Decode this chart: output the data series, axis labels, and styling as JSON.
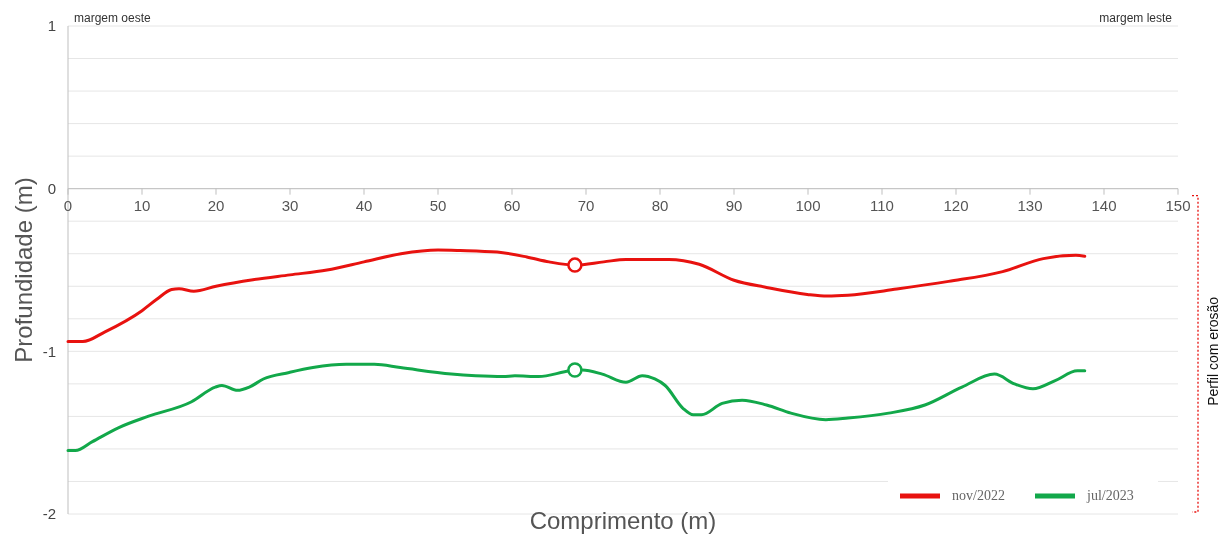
{
  "chart_data": {
    "type": "line",
    "xlabel": "Comprimento (m)",
    "ylabel": "Profundidade (m)",
    "xlim": [
      0,
      150
    ],
    "xticks": [
      0,
      10,
      20,
      30,
      40,
      50,
      60,
      70,
      80,
      90,
      100,
      110,
      120,
      130,
      140,
      150
    ],
    "ylim": [
      -2,
      1
    ],
    "yticks": [
      -2,
      {
        "value": -1.8,
        "label": null
      },
      {
        "value": -1.6,
        "label": null
      },
      {
        "value": -1.4,
        "label": null
      },
      {
        "value": -1.2,
        "label": null
      },
      -1,
      {
        "value": -0.8,
        "label": null
      },
      {
        "value": -0.6,
        "label": null
      },
      {
        "value": -0.4,
        "label": null
      },
      {
        "value": -0.2,
        "label": null
      },
      0,
      {
        "value": 0.2,
        "label": null
      },
      {
        "value": 0.4,
        "label": null
      },
      {
        "value": 0.6,
        "label": null
      },
      {
        "value": 0.8,
        "label": null
      },
      1
    ],
    "grid": "y",
    "legend": "bottom right",
    "line_style": "solid",
    "marker": "none",
    "annotations": [
      "margem oeste",
      "margem leste",
      "Perfil com erosão"
    ],
    "series": [
      {
        "name": "nov/2022",
        "color": "#e8120f",
        "x": [
          0,
          2,
          5,
          10,
          12,
          14,
          15,
          17,
          20,
          25,
          30,
          35,
          40,
          45,
          50,
          53,
          58,
          62,
          65,
          68.5,
          72.4,
          75.4,
          81.2,
          85.3,
          90,
          94.4,
          99.9,
          102.6,
          105.4,
          112,
          119,
          126.3,
          131.8,
          136.2,
          137.4
        ],
        "values": [
          -0.94,
          -0.94,
          -0.88,
          -0.75,
          -0.68,
          -0.62,
          -0.615,
          -0.63,
          -0.6,
          -0.56,
          -0.53,
          -0.5,
          -0.45,
          -0.4,
          -0.377,
          -0.38,
          -0.39,
          -0.42,
          -0.45,
          -0.47,
          -0.45,
          -0.435,
          -0.435,
          -0.465,
          -0.563,
          -0.607,
          -0.65,
          -0.66,
          -0.655,
          -0.617,
          -0.57,
          -0.51,
          -0.43,
          -0.41,
          -0.415
        ]
      },
      {
        "name": "jul/2023",
        "color": "#12a84a",
        "x": [
          0,
          1,
          3.3,
          6.8,
          10.8,
          16.7,
          19.9,
          20.8,
          22.9,
          24.5,
          26.4,
          29.9,
          33.1,
          37.6,
          41.4,
          44.9,
          51.8,
          55.1,
          58.8,
          60.4,
          63.6,
          67.9,
          69.5,
          72.2,
          75.4,
          77.6,
          79.3,
          80.7,
          83.1,
          84.5,
          85.6,
          88.4,
          91.1,
          94.4,
          97.7,
          102.4,
          105.4,
          110.9,
          115.8,
          120.8,
          125.2,
          127.9,
          130.4,
          133.4,
          136.4,
          137.4
        ],
        "values": [
          -1.61,
          -1.61,
          -1.555,
          -1.47,
          -1.4,
          -1.31,
          -1.22,
          -1.21,
          -1.24,
          -1.22,
          -1.17,
          -1.13,
          -1.1,
          -1.08,
          -1.08,
          -1.1,
          -1.14,
          -1.15,
          -1.155,
          -1.15,
          -1.155,
          -1.12,
          -1.115,
          -1.14,
          -1.19,
          -1.15,
          -1.17,
          -1.21,
          -1.35,
          -1.39,
          -1.39,
          -1.32,
          -1.3,
          -1.33,
          -1.38,
          -1.42,
          -1.41,
          -1.38,
          -1.33,
          -1.22,
          -1.14,
          -1.2,
          -1.23,
          -1.18,
          -1.12,
          -1.12
        ]
      },
      {
        "type": "scatter",
        "marker": "circle",
        "color": "#e8120f",
        "x": [
          68.5
        ],
        "values": [
          -0.47
        ]
      },
      {
        "type": "scatter",
        "marker": "circle",
        "color": "#12a84a",
        "x": [
          68.5
        ],
        "values": [
          -1.115
        ]
      }
    ]
  }
}
